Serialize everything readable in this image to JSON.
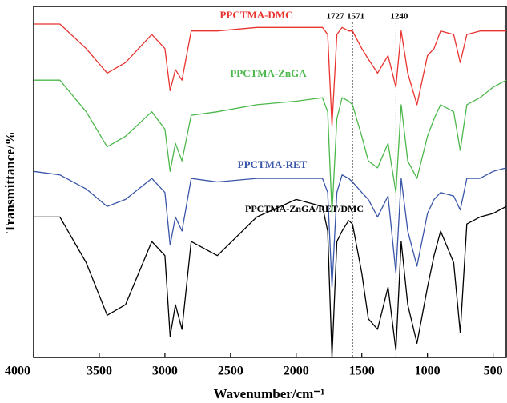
{
  "chart_data": {
    "type": "line",
    "x_label": "Wavenumber/cm⁻¹",
    "y_label": "Transmittance/%",
    "xlim": [
      4000,
      400
    ],
    "ylim": [
      0,
      100
    ],
    "xticks": [
      4000,
      3500,
      3000,
      2500,
      2000,
      1500,
      1000,
      500
    ],
    "x": [
      4000,
      3800,
      3600,
      3440,
      3300,
      3100,
      3000,
      2960,
      2920,
      2870,
      2800,
      2600,
      2300,
      2000,
      1800,
      1760,
      1727,
      1690,
      1650,
      1600,
      1571,
      1500,
      1450,
      1380,
      1300,
      1240,
      1200,
      1150,
      1080,
      1000,
      950,
      900,
      800,
      750,
      700,
      600,
      500,
      400
    ],
    "series": [
      {
        "name": "PPCTMA-DMC",
        "color": "#e8332f",
        "values": [
          95,
          95,
          88,
          81,
          84,
          92,
          88,
          76,
          82,
          79,
          93,
          93,
          94,
          94,
          94,
          92,
          66,
          92,
          94,
          93,
          93,
          88,
          85,
          81,
          86,
          77,
          93,
          81,
          72,
          86,
          88,
          93,
          92,
          84,
          92,
          93,
          93,
          93
        ]
      },
      {
        "name": "PPCTMA-ZnGA",
        "color": "#4cb84c",
        "values": [
          79,
          79,
          70,
          60,
          63,
          70,
          65,
          53,
          61,
          56,
          69,
          70,
          72,
          73,
          74,
          70,
          41,
          68,
          74,
          73,
          72,
          63,
          56,
          54,
          61,
          47,
          72,
          56,
          51,
          63,
          68,
          72,
          70,
          59,
          72,
          74,
          77,
          79
        ]
      },
      {
        "name": "PPCTMA-RET",
        "color": "#3a56a8",
        "values": [
          53,
          52,
          48,
          43,
          45,
          51,
          47,
          32,
          40,
          36,
          51,
          50,
          51,
          51,
          51,
          47,
          20,
          47,
          52,
          51,
          50,
          47,
          45,
          40,
          46,
          24,
          51,
          36,
          26,
          41,
          45,
          47,
          46,
          42,
          51,
          51,
          53,
          54
        ]
      },
      {
        "name": "PPCTMA-ZnGA/RET/DMC",
        "color": "#000000",
        "values": [
          40,
          40,
          27,
          12,
          15,
          33,
          29,
          6,
          15,
          8,
          33,
          29,
          40,
          45,
          43,
          36,
          0,
          33,
          36,
          39,
          38,
          24,
          11,
          8,
          20,
          2,
          33,
          15,
          4,
          20,
          29,
          36,
          27,
          7,
          38,
          40,
          41,
          43
        ]
      }
    ],
    "annotations": [
      {
        "text": "1727",
        "x": 1727
      },
      {
        "text": "1571",
        "x": 1571
      },
      {
        "text": "1240",
        "x": 1240
      }
    ]
  }
}
